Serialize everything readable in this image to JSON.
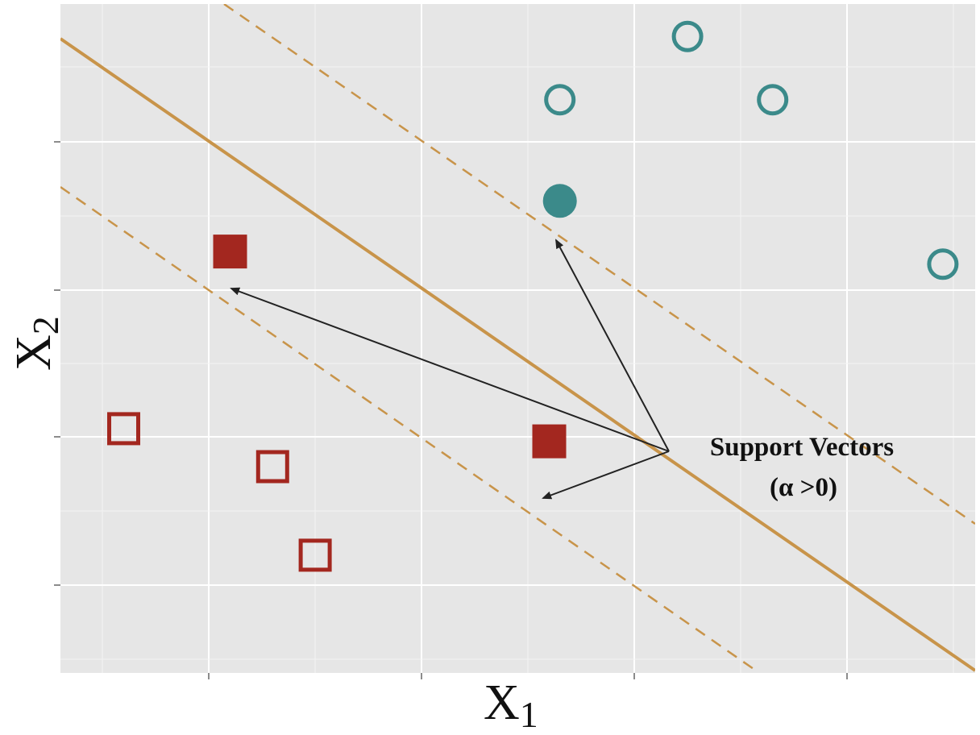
{
  "labels": {
    "x_axis": "X",
    "x_axis_sub": "1",
    "y_axis": "X",
    "y_axis_sub": "2",
    "annotation_line1": "Support Vectors",
    "annotation_line2": "(α >0)"
  },
  "colors": {
    "panel_background": "#e6e6e6",
    "grid": "#ffffff",
    "hyperplane": "#c8944a",
    "margin": "#c8944a",
    "class_square": "#a3271f",
    "class_circle": "#3b8a8a",
    "arrow": "#222222"
  },
  "icons": {
    "square_class": "square-marker",
    "circle_class": "circle-marker"
  },
  "points": [
    {
      "class": "square",
      "x": 0.5,
      "y": 2.3,
      "support": false
    },
    {
      "class": "square",
      "x": 1.9,
      "y": 2.0,
      "support": false
    },
    {
      "class": "square",
      "x": 2.3,
      "y": 1.3,
      "support": false
    },
    {
      "class": "square",
      "x": 1.5,
      "y": 3.7,
      "support": true
    },
    {
      "class": "square",
      "x": 4.5,
      "y": 2.2,
      "support": true
    },
    {
      "class": "circle",
      "x": 4.6,
      "y": 4.1,
      "support": true
    },
    {
      "class": "circle",
      "x": 4.6,
      "y": 4.9,
      "support": false
    },
    {
      "class": "circle",
      "x": 5.8,
      "y": 5.4,
      "support": false
    },
    {
      "class": "circle",
      "x": 6.6,
      "y": 4.9,
      "support": false
    },
    {
      "class": "circle",
      "x": 8.2,
      "y": 3.6,
      "support": false
    }
  ]
}
